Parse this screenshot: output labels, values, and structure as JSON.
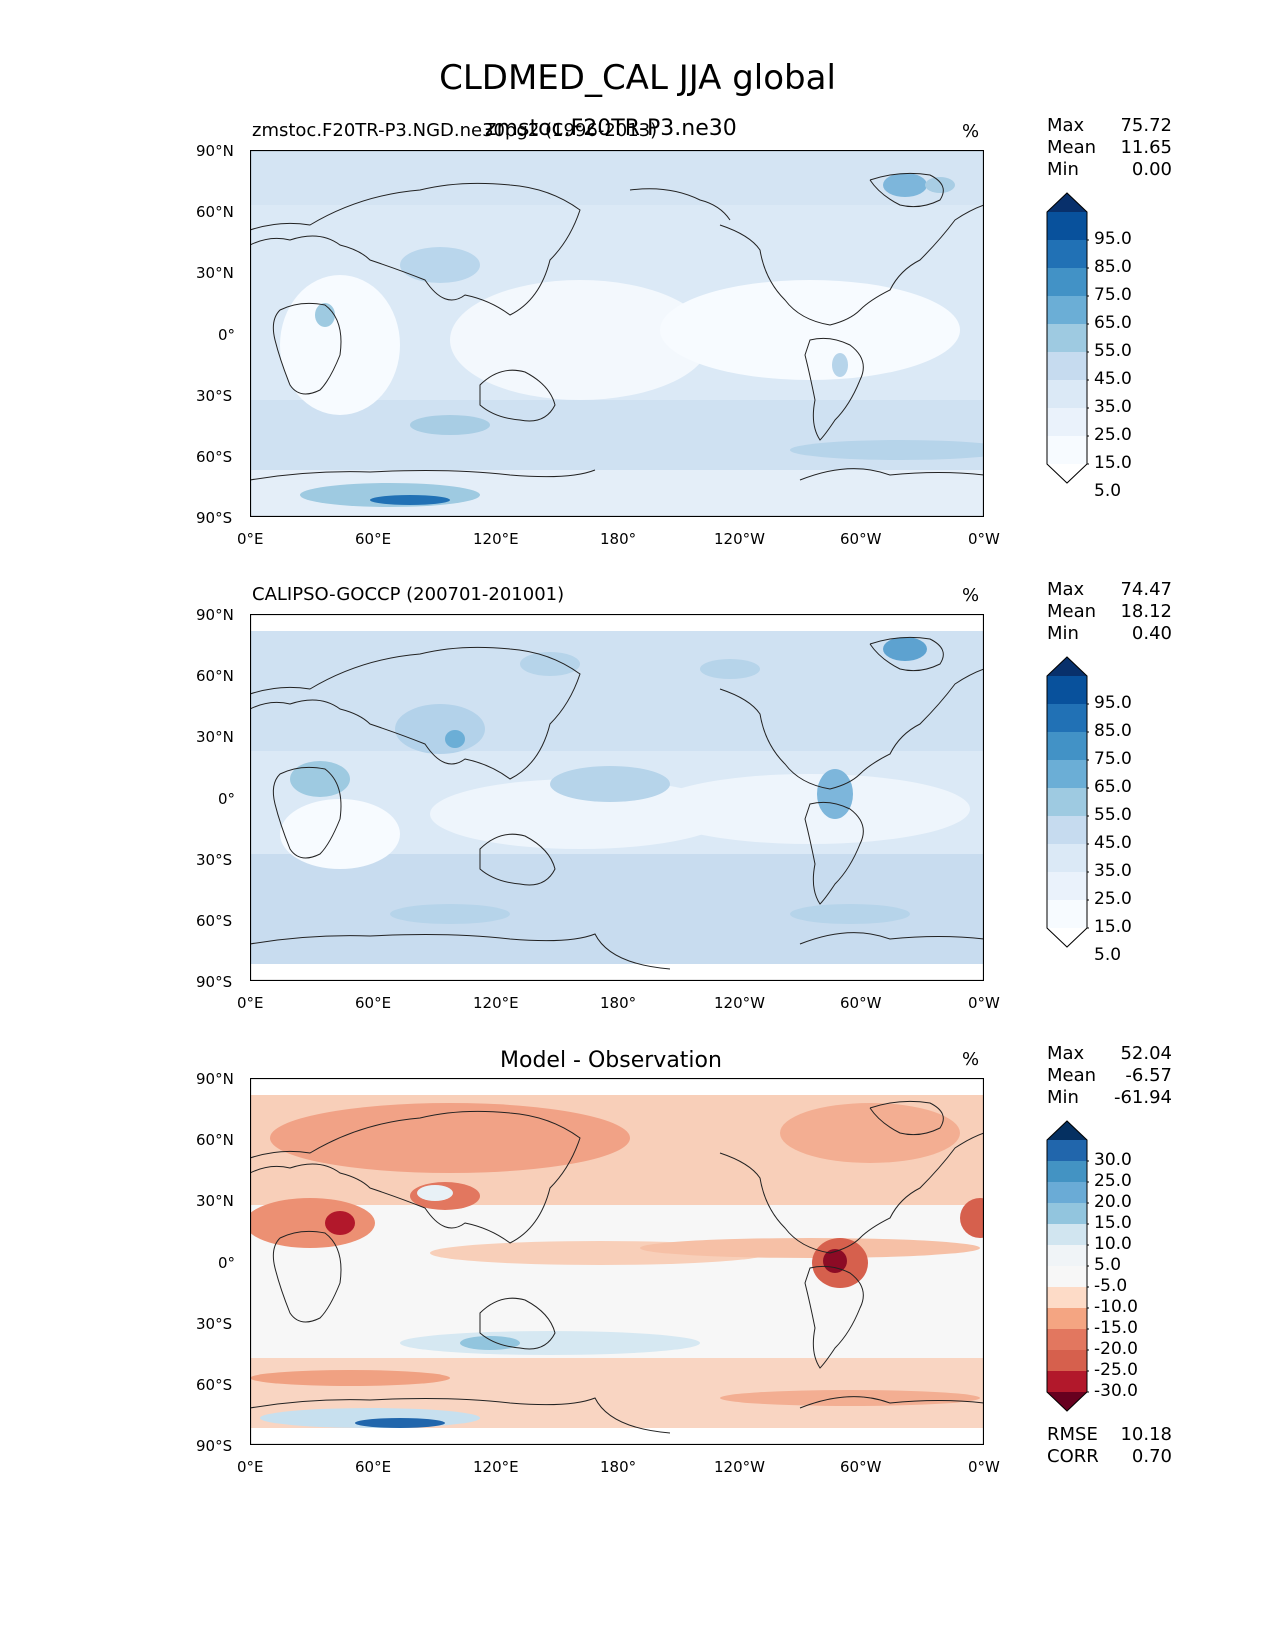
{
  "title": "CLDMED_CAL JJA global",
  "panels": [
    {
      "left_title": "zmstoc.F20TR-P3.NGD.ne30pg2 (1996-2013)",
      "center_title": "zmstoc.F20TR-P3.ne30",
      "units": "%",
      "stats": [
        {
          "label": "Max",
          "value": "75.72"
        },
        {
          "label": "Mean",
          "value": "11.65"
        },
        {
          "label": "Min",
          "value": "0.00"
        }
      ],
      "levels": [
        "95.0",
        "85.0",
        "75.0",
        "65.0",
        "55.0",
        "45.0",
        "35.0",
        "25.0",
        "15.0",
        "5.0"
      ],
      "colors": [
        "#08306b",
        "#08519c",
        "#2171b5",
        "#4292c6",
        "#6baed6",
        "#9ecae1",
        "#c6dbef",
        "#dbe9f6",
        "#eaf2fb",
        "#f7fbff",
        "#ffffff"
      ]
    },
    {
      "left_title": "CALIPSO-GOCCP (200701-201001)",
      "center_title": "",
      "units": "%",
      "stats": [
        {
          "label": "Max",
          "value": "74.47"
        },
        {
          "label": "Mean",
          "value": "18.12"
        },
        {
          "label": "Min",
          "value": "0.40"
        }
      ],
      "levels": [
        "95.0",
        "85.0",
        "75.0",
        "65.0",
        "55.0",
        "45.0",
        "35.0",
        "25.0",
        "15.0",
        "5.0"
      ],
      "colors": [
        "#08306b",
        "#08519c",
        "#2171b5",
        "#4292c6",
        "#6baed6",
        "#9ecae1",
        "#c6dbef",
        "#dbe9f6",
        "#eaf2fb",
        "#f7fbff",
        "#ffffff"
      ]
    },
    {
      "left_title": "",
      "center_title": "Model - Observation",
      "units": "%",
      "stats": [
        {
          "label": "Max",
          "value": "52.04"
        },
        {
          "label": "Mean",
          "value": "-6.57"
        },
        {
          "label": "Min",
          "value": "-61.94"
        }
      ],
      "levels": [
        "30.0",
        "25.0",
        "20.0",
        "15.0",
        "10.0",
        "5.0",
        "-5.0",
        "-10.0",
        "-15.0",
        "-20.0",
        "-25.0",
        "-30.0"
      ],
      "colors": [
        "#053061",
        "#2166ac",
        "#4393c3",
        "#6aabd6",
        "#92c5de",
        "#d1e5f0",
        "#f0f4f7",
        "#f7f7f7",
        "#fddbc7",
        "#f4a582",
        "#e2775f",
        "#d6604d",
        "#b2182b",
        "#67001f"
      ],
      "bottom_stats": [
        {
          "label": "RMSE",
          "value": "10.18"
        },
        {
          "label": "CORR",
          "value": "0.70"
        }
      ]
    }
  ],
  "lat_ticks": [
    "90°N",
    "60°N",
    "30°N",
    "0°",
    "30°S",
    "60°S",
    "90°S"
  ],
  "lon_ticks": [
    "0°E",
    "60°E",
    "120°E",
    "180°",
    "120°W",
    "60°W",
    "0°W"
  ]
}
